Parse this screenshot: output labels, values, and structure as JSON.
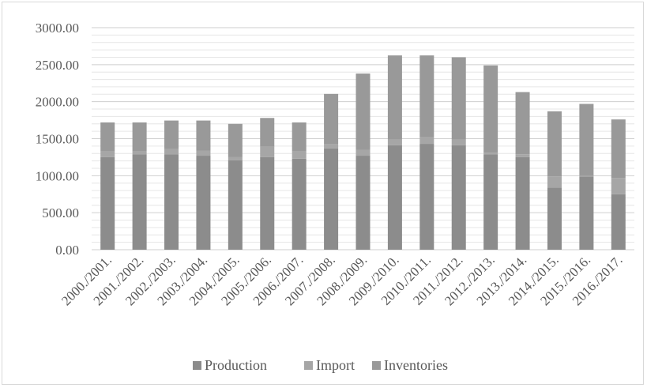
{
  "chart_data": {
    "type": "bar",
    "stacked": true,
    "title": "",
    "xlabel": "",
    "ylabel": "",
    "categories": [
      "2000./2001.",
      "2001./2002.",
      "2002./2003.",
      "2003./2004.",
      "2004./2005.",
      "2005./2006.",
      "2006./2007.",
      "2007./2008.",
      "2008./2009.",
      "2009./2010.",
      "2010./2011.",
      "2011./2012.",
      "2012./2013.",
      "2013./2014.",
      "2014./2015.",
      "2015./2016.",
      "2016./2017."
    ],
    "series": [
      {
        "name": "Production",
        "color": "#8c8c8c",
        "values": [
          1250,
          1290,
          1290,
          1270,
          1210,
          1250,
          1230,
          1370,
          1270,
          1410,
          1430,
          1410,
          1290,
          1250,
          840,
          990,
          750
        ]
      },
      {
        "name": "Import",
        "color": "#a6a6a6",
        "values": [
          80,
          40,
          70,
          70,
          40,
          140,
          100,
          60,
          80,
          80,
          90,
          80,
          20,
          40,
          150,
          10,
          220
        ]
      },
      {
        "name": "Inventories",
        "color": "#999999",
        "values": [
          390,
          390,
          385,
          405,
          450,
          390,
          390,
          675,
          1030,
          1135,
          1105,
          1110,
          1180,
          840,
          880,
          970,
          790
        ]
      }
    ],
    "ylim": [
      0,
      3000
    ],
    "yticks": [
      "0.00",
      "500.00",
      "1000.00",
      "1500.00",
      "2000.00",
      "2500.00",
      "3000.00"
    ],
    "ytick_values": [
      0,
      500,
      1000,
      1500,
      2000,
      2500,
      3000
    ],
    "minor_grid_step": 100,
    "grid": true,
    "legend_position": "bottom"
  }
}
